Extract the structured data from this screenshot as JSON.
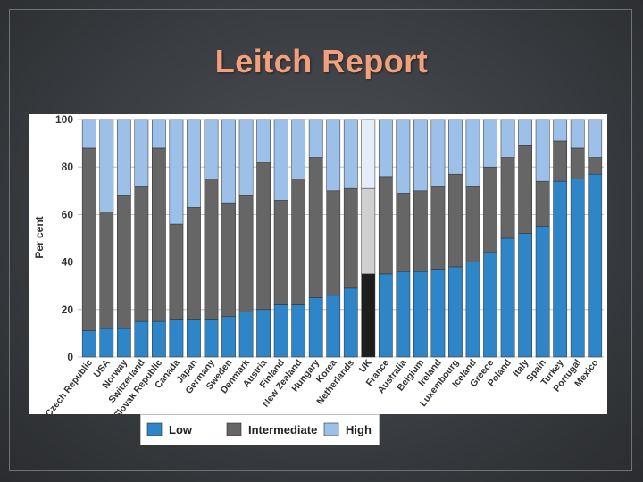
{
  "slide": {
    "title": "Leitch Report"
  },
  "chart_data": {
    "type": "bar",
    "stacked": true,
    "ylabel": "Per cent",
    "xlabel": "",
    "ylim": [
      0,
      100
    ],
    "yticks": [
      0,
      20,
      40,
      60,
      80,
      100
    ],
    "grid": true,
    "legend_position": "bottom",
    "highlight_category": "UK",
    "categories": [
      "Czech Republic",
      "USA",
      "Norway",
      "Switzerland",
      "Slovak Republic",
      "Canada",
      "Japan",
      "Germany",
      "Sweden",
      "Denmark",
      "Austria",
      "Finland",
      "New Zealand",
      "Hungary",
      "Korea",
      "Netherlands",
      "UK",
      "France",
      "Australia",
      "Belgium",
      "Ireland",
      "Luxembourg",
      "Iceland",
      "Greece",
      "Poland",
      "Italy",
      "Spain",
      "Turkey",
      "Portugal",
      "Mexico"
    ],
    "series": [
      {
        "name": "Low",
        "color": "#2e86c8",
        "values": [
          11,
          12,
          12,
          15,
          15,
          16,
          16,
          16,
          17,
          19,
          20,
          22,
          22,
          25,
          26,
          29,
          35,
          35,
          36,
          36,
          37,
          38,
          40,
          44,
          50,
          52,
          55,
          74,
          75,
          77
        ]
      },
      {
        "name": "Intermediate",
        "color": "#666666",
        "values": [
          77,
          49,
          56,
          57,
          73,
          40,
          47,
          59,
          48,
          49,
          62,
          44,
          53,
          59,
          44,
          42,
          36,
          41,
          33,
          34,
          35,
          39,
          32,
          36,
          34,
          37,
          19,
          17,
          13,
          7
        ]
      },
      {
        "name": "High",
        "color": "#9dc0e8",
        "values": [
          12,
          39,
          32,
          28,
          12,
          44,
          37,
          25,
          35,
          32,
          18,
          34,
          25,
          16,
          30,
          29,
          29,
          24,
          31,
          30,
          28,
          23,
          28,
          20,
          16,
          11,
          26,
          9,
          12,
          16
        ]
      }
    ],
    "highlight_colors": {
      "Low": "#1e1e1e",
      "Intermediate": "#d0d0d0",
      "High": "#e4edf8"
    }
  }
}
